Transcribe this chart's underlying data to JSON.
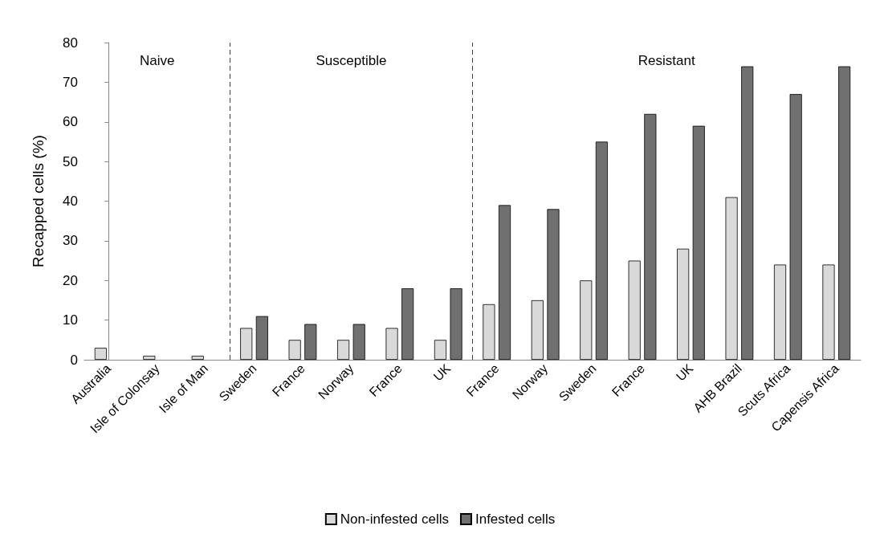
{
  "chart_data": {
    "type": "bar",
    "ylabel": "Recapped cells (%)",
    "categories": [
      "Australia",
      "Isle of Colonsay",
      "Isle of Man",
      "Sweden",
      "France",
      "Norway",
      "France",
      "UK",
      "France",
      "Norway",
      "Sweden",
      "France",
      "UK",
      "AHB Brazil",
      "Scuts Africa",
      "Capensis Africa"
    ],
    "series": [
      {
        "name": "Non-infested cells",
        "color": "#d9d9d9",
        "values": [
          3,
          1,
          1,
          8,
          5,
          5,
          8,
          5,
          14,
          15,
          20,
          25,
          28,
          41,
          24,
          24
        ]
      },
      {
        "name": "Infested cells",
        "color": "#707070",
        "values": [
          null,
          null,
          null,
          11,
          9,
          9,
          18,
          18,
          39,
          38,
          55,
          62,
          59,
          74,
          67,
          74
        ]
      }
    ],
    "ylim": [
      0,
      80
    ],
    "yticks": [
      0,
      10,
      20,
      30,
      40,
      50,
      60,
      70,
      80
    ],
    "grid": false,
    "legend": "bottom",
    "annotations": [
      "Naive",
      "Susceptible",
      "Resistant"
    ]
  }
}
